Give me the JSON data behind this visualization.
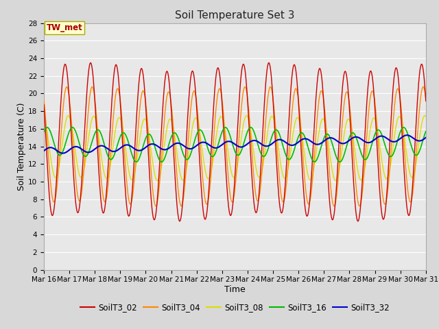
{
  "title": "Soil Temperature Set 3",
  "xlabel": "Time",
  "ylabel": "Soil Temperature (C)",
  "ylim": [
    0,
    28
  ],
  "yticks": [
    0,
    2,
    4,
    6,
    8,
    10,
    12,
    14,
    16,
    18,
    20,
    22,
    24,
    26,
    28
  ],
  "xtick_labels": [
    "Mar 16",
    "Mar 17",
    "Mar 18",
    "Mar 19",
    "Mar 20",
    "Mar 21",
    "Mar 22",
    "Mar 23",
    "Mar 24",
    "Mar 25",
    "Mar 26",
    "Mar 27",
    "Mar 28",
    "Mar 29",
    "Mar 30",
    "Mar 31"
  ],
  "series_colors": {
    "SoilT3_02": "#cc0000",
    "SoilT3_04": "#ff8800",
    "SoilT3_08": "#dddd00",
    "SoilT3_16": "#00bb00",
    "SoilT3_32": "#0000cc"
  },
  "series_names": [
    "SoilT3_02",
    "SoilT3_04",
    "SoilT3_08",
    "SoilT3_16",
    "SoilT3_32"
  ],
  "annotation_text": "TW_met",
  "bg_color": "#d8d8d8",
  "plot_bg_color": "#e8e8e8",
  "grid_color": "#ffffff",
  "title_fontsize": 11,
  "axis_fontsize": 9,
  "tick_fontsize": 7.5,
  "legend_fontsize": 8.5
}
